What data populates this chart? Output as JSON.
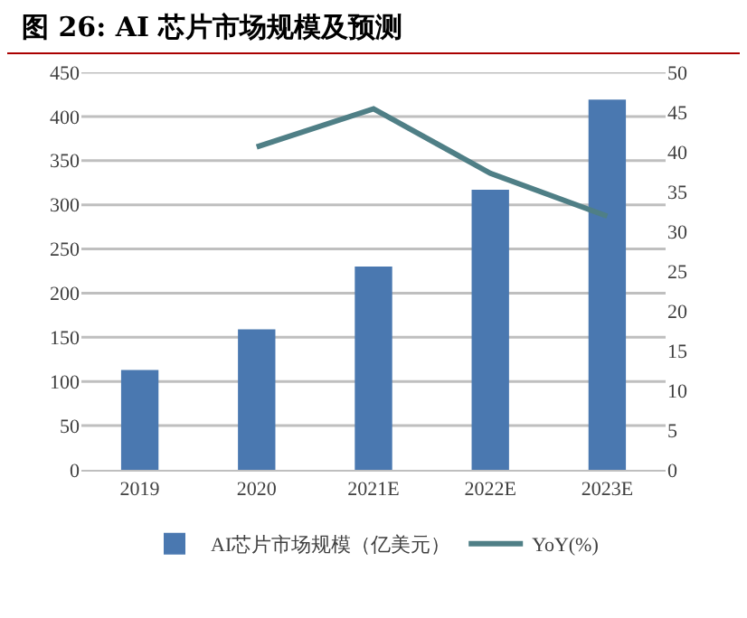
{
  "chart_data": {
    "type": "bar",
    "title": "图 26:  AI 芯片市场规模及预测",
    "categories": [
      "2019",
      "2020",
      "2021E",
      "2022E",
      "2023E"
    ],
    "series": [
      {
        "name": "AI芯片市场规模（亿美元）",
        "color": "#4a78b0",
        "values": [
          113,
          159,
          230,
          317,
          419
        ]
      },
      {
        "name": "YoY(%)",
        "type": "line",
        "axis": "y2",
        "color": "#4f7f86",
        "values": [
          null,
          40.6,
          45.4,
          37.3,
          31.9
        ]
      }
    ],
    "ylim": [
      0,
      450
    ],
    "yticks": [
      0,
      50,
      100,
      150,
      200,
      250,
      300,
      350,
      400,
      450
    ],
    "y2lim": [
      0,
      50
    ],
    "y2ticks": [
      0,
      5,
      10,
      15,
      20,
      25,
      30,
      35,
      40,
      45,
      50
    ],
    "grid": "y",
    "legend": "bottom",
    "marker": "none"
  }
}
